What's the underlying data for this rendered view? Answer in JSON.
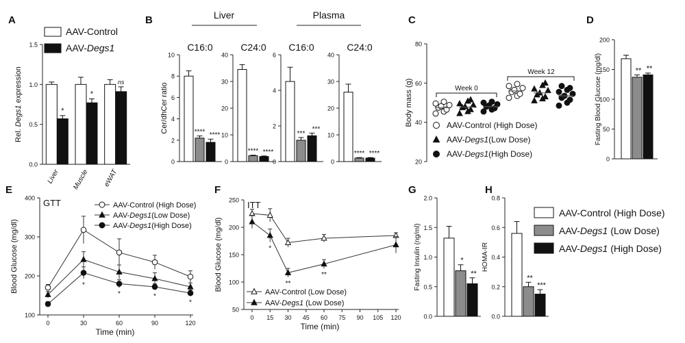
{
  "colors": {
    "control": "#ffffff",
    "low": "#8c8c8c",
    "high": "#111111",
    "axis": "#222222"
  },
  "chart_data": [
    {
      "id": "A",
      "panel_label": "A",
      "type": "bar",
      "ylabel_prefix": "Rel. ",
      "ylabel_gene": "Degs1",
      "ylabel_suffix": " expression",
      "ylim": [
        0,
        1.5
      ],
      "yticks": [
        "0.0",
        "0.5",
        "1.0",
        "1.5"
      ],
      "categories": [
        "Liver",
        "Muscle",
        "eWAT"
      ],
      "legend": [
        {
          "text": "AAV-Control",
          "italic": ""
        },
        {
          "text": "AAV-",
          "italic": "Degs1"
        }
      ],
      "series": [
        {
          "values": [
            1.0,
            1.0,
            1.0
          ],
          "errors": [
            0.03,
            0.09,
            0.06
          ],
          "sig": [
            "",
            "",
            ""
          ]
        },
        {
          "values": [
            0.57,
            0.77,
            0.91
          ],
          "errors": [
            0.04,
            0.05,
            0.06
          ],
          "sig": [
            "*",
            "*",
            "ns"
          ]
        }
      ]
    },
    {
      "id": "B",
      "panel_label": "B",
      "type": "bar",
      "ylabel": "Cer/dhCer ratio",
      "group_headers": [
        "Liver",
        "Plasma"
      ],
      "subpanels": [
        {
          "title": "C16:0",
          "ylim": [
            0,
            10
          ],
          "yticks": [
            "0",
            "2",
            "4",
            "6",
            "8",
            "10"
          ],
          "values": [
            8.0,
            2.2,
            1.8
          ],
          "errors": [
            0.5,
            0.2,
            0.3
          ],
          "sig": [
            "",
            "****",
            "****"
          ]
        },
        {
          "title": "C24:0",
          "ylim": [
            0,
            40
          ],
          "yticks": [
            "0",
            "10",
            "20",
            "30",
            "40"
          ],
          "values": [
            34.5,
            2.2,
            1.9
          ],
          "errors": [
            1.8,
            0.2,
            0.2
          ],
          "sig": [
            "",
            "****",
            "****"
          ]
        },
        {
          "title": "C16:0",
          "ylim": [
            0,
            6
          ],
          "yticks": [
            "0",
            "2",
            "4",
            "6"
          ],
          "values": [
            4.5,
            1.2,
            1.45
          ],
          "errors": [
            0.8,
            0.15,
            0.15
          ],
          "sig": [
            "",
            "***",
            "***"
          ]
        },
        {
          "title": "C24:0",
          "ylim": [
            0,
            40
          ],
          "yticks": [
            "0",
            "10",
            "20",
            "30",
            "40"
          ],
          "values": [
            26,
            1.3,
            1.3
          ],
          "errors": [
            3,
            0.2,
            0.2
          ],
          "sig": [
            "",
            "****",
            "****"
          ]
        }
      ]
    },
    {
      "id": "C",
      "panel_label": "C",
      "type": "scatter",
      "ylabel": "Body mass (g)",
      "ylim": [
        20,
        80
      ],
      "yticks": [
        "20",
        "40",
        "60",
        "80"
      ],
      "period_labels": [
        "Week 0",
        "Week 12"
      ],
      "legend": [
        {
          "text": "AAV-Control (High Dose)",
          "italic": "",
          "after": ""
        },
        {
          "text": "AAV-",
          "italic": "Degs1",
          "after": "(Low Dose)"
        },
        {
          "text": "AAV-",
          "italic": "Degs1",
          "after": "(High Dose)"
        }
      ],
      "groups": [
        {
          "points": [
            44.5,
            45.5,
            46.5,
            47.5,
            48.2,
            48.8,
            49.6,
            50.5
          ],
          "mean": 47.5
        },
        {
          "points": [
            44.5,
            45.5,
            46.5,
            47.5,
            48,
            48.8,
            49.5,
            50.8,
            51.5
          ],
          "mean": 47.8
        },
        {
          "points": [
            45.5,
            46.5,
            47.2,
            48,
            48.6,
            49.2,
            50,
            50.5
          ],
          "mean": 48.0
        },
        {
          "points": [
            52.5,
            53.5,
            54.5,
            55.5,
            56.5,
            57.5,
            58.5,
            59.5
          ],
          "mean": 56
        },
        {
          "points": [
            51,
            52,
            53,
            54,
            55,
            56.2,
            57,
            58.8,
            60
          ],
          "mean": 55
        },
        {
          "points": [
            48.5,
            50,
            51.5,
            52.5,
            53.5,
            54.5,
            55.5,
            56.5,
            57.5,
            58.5
          ],
          "mean": 53.5
        }
      ]
    },
    {
      "id": "D",
      "panel_label": "D",
      "type": "bar",
      "ylabel": "Fasting Blood Glucose (mg/dl)",
      "ylim": [
        0,
        200
      ],
      "yticks": [
        "0",
        "50",
        "100",
        "150",
        "200"
      ],
      "values": [
        168,
        137,
        141
      ],
      "errors": [
        6,
        4,
        3
      ],
      "sig": [
        "",
        "**",
        "**"
      ]
    },
    {
      "id": "E",
      "panel_label": "E",
      "type": "line",
      "plot_title": "GTT",
      "ylabel": "Blood Glucose (mg/dl)",
      "xlabel": "Time (min)",
      "x": [
        0,
        30,
        60,
        90,
        120
      ],
      "xlim": [
        0,
        120
      ],
      "xticks": [
        "0",
        "30",
        "60",
        "90",
        "120"
      ],
      "ylim": [
        100,
        400
      ],
      "yticks": [
        "100",
        "200",
        "300",
        "400"
      ],
      "legend": [
        {
          "text": "AAV-Control (High Dose)",
          "italic": "",
          "after": ""
        },
        {
          "text": "AAV-",
          "italic": "Degs1",
          "after": "(Low Dose)"
        },
        {
          "text": "AAV-",
          "italic": "Degs1",
          "after": "(High Dose)"
        }
      ],
      "series": [
        {
          "marker": "circle-open",
          "values": [
            170,
            318,
            260,
            235,
            198
          ],
          "errors": [
            8,
            35,
            35,
            18,
            15
          ]
        },
        {
          "marker": "triangle-filled",
          "values": [
            152,
            242,
            210,
            193,
            172
          ],
          "errors": [
            8,
            20,
            18,
            15,
            10
          ]
        },
        {
          "marker": "circle-filled",
          "values": [
            128,
            208,
            180,
            172,
            156
          ],
          "errors": [
            6,
            15,
            10,
            8,
            8
          ]
        }
      ],
      "sig": [
        "",
        "*",
        "*",
        "*",
        "*"
      ]
    },
    {
      "id": "F",
      "panel_label": "F",
      "type": "line",
      "plot_title": "ITT",
      "ylabel": "Blood Glucose (mg/dl)",
      "xlabel": "Time (min)",
      "x": [
        0,
        15,
        30,
        60,
        120
      ],
      "xlim": [
        0,
        120
      ],
      "xticks": [
        "0",
        "15",
        "30",
        "45",
        "60",
        "75",
        "90",
        "105",
        "120"
      ],
      "ylim": [
        50,
        250
      ],
      "yticks": [
        "50",
        "100",
        "150",
        "200",
        "250"
      ],
      "legend": [
        {
          "text": "AAV-Control (Low Dose)",
          "italic": "",
          "after": ""
        },
        {
          "text": "AAV-",
          "italic": "Degs1",
          "after": " (Low Dose)"
        }
      ],
      "series": [
        {
          "marker": "triangle-open",
          "values": [
            225,
            222,
            172,
            180,
            185
          ],
          "errors": [
            8,
            12,
            8,
            7,
            5
          ]
        },
        {
          "marker": "triangle-filled",
          "values": [
            210,
            185,
            117,
            133,
            168
          ],
          "errors": [
            12,
            12,
            8,
            8,
            15
          ]
        }
      ],
      "sig": [
        "",
        "*",
        "**",
        "**",
        ""
      ]
    },
    {
      "id": "G",
      "panel_label": "G",
      "type": "bar",
      "ylabel": "Fasting Insulin (ng/ml)",
      "ylim": [
        0,
        2.0
      ],
      "yticks": [
        "0.0",
        "0.5",
        "1.0",
        "1.5",
        "2.0"
      ],
      "values": [
        1.32,
        0.77,
        0.55
      ],
      "errors": [
        0.2,
        0.1,
        0.1
      ],
      "sig": [
        "",
        "*",
        "**"
      ]
    },
    {
      "id": "H",
      "panel_label": "H",
      "type": "bar",
      "ylabel": "HOMA-IR",
      "ylim": [
        0,
        0.8
      ],
      "yticks": [
        "0.0",
        "0.2",
        "0.4",
        "0.6",
        "0.8"
      ],
      "values": [
        0.56,
        0.2,
        0.15
      ],
      "errors": [
        0.08,
        0.03,
        0.03
      ],
      "sig": [
        "",
        "**",
        "***"
      ],
      "legend": [
        {
          "text": "AAV-Control (High Dose)",
          "italic": "",
          "after": ""
        },
        {
          "text": "AAV-",
          "italic": "Degs1",
          "after": " (Low Dose)"
        },
        {
          "text": "AAV-",
          "italic": "Degs1",
          "after": " (High Dose)"
        }
      ]
    }
  ]
}
